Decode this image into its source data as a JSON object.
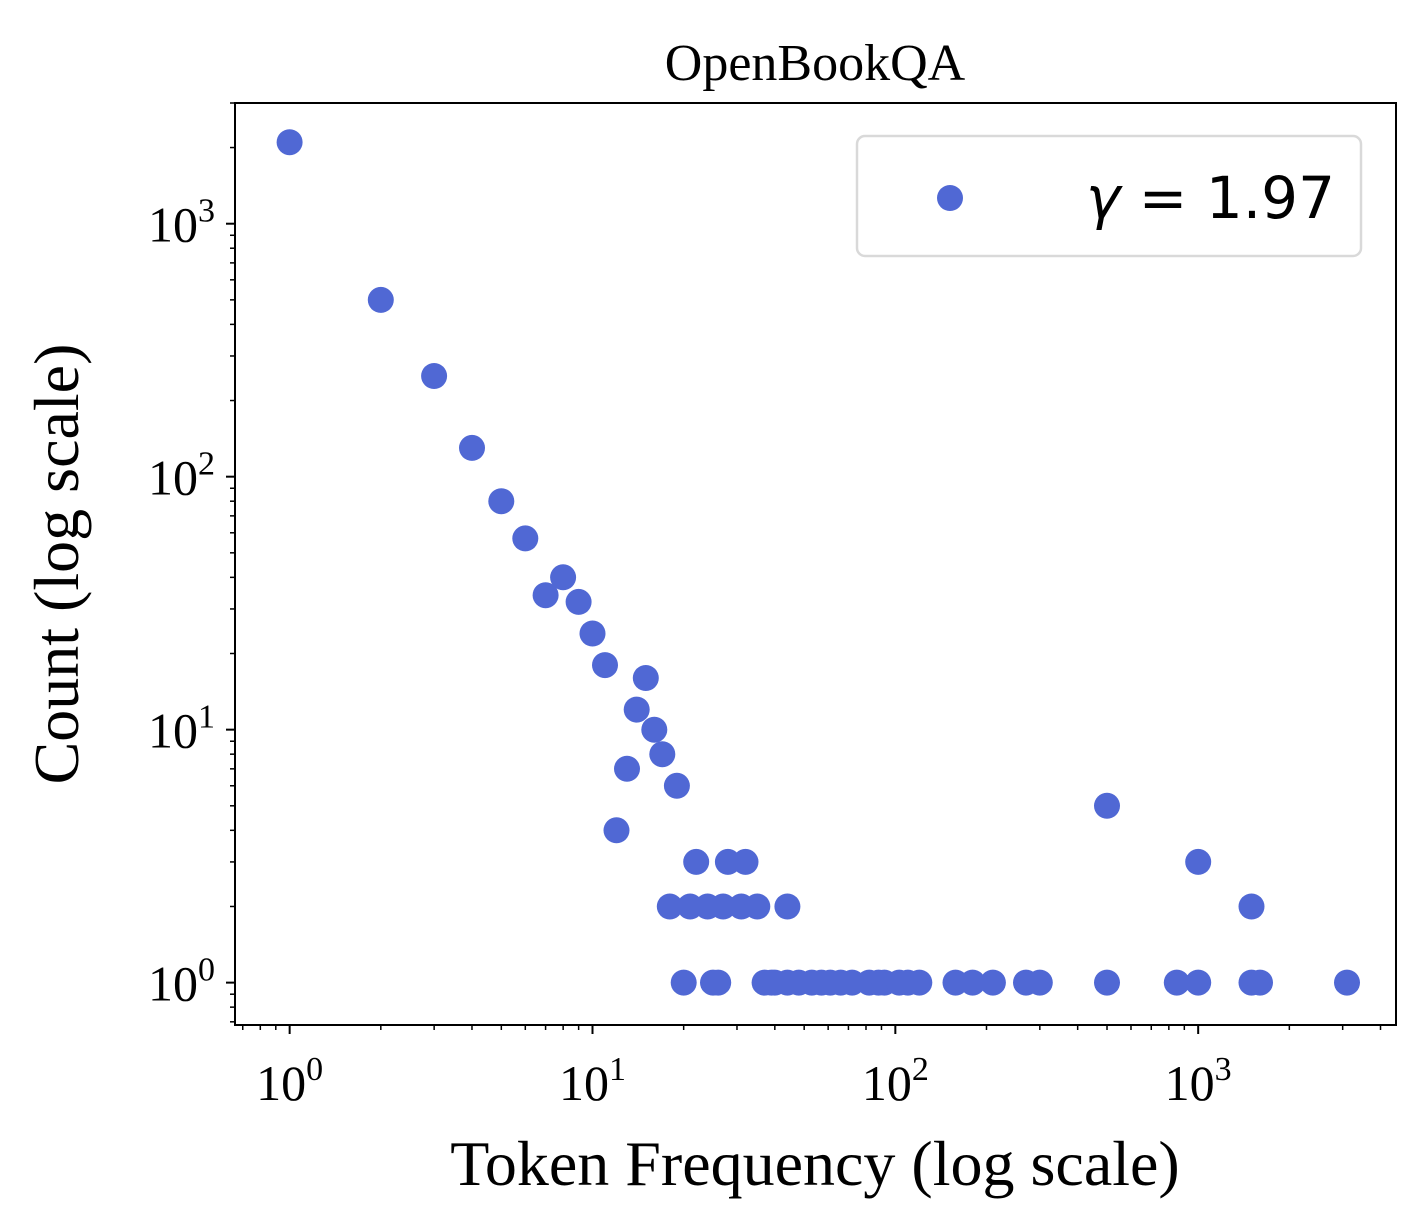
{
  "chart_data": {
    "type": "scatter",
    "title": "OpenBookQA",
    "xlabel": "Token Frequency (log scale)",
    "ylabel": "Count (log scale)",
    "xscale": "log",
    "yscale": "log",
    "xlim": [
      0.66,
      4500
    ],
    "ylim": [
      0.68,
      3000
    ],
    "x_ticks": [
      1,
      10,
      100,
      1000
    ],
    "y_ticks": [
      1,
      10,
      100,
      1000
    ],
    "grid": false,
    "legend": {
      "placement": "top-right",
      "label_prefix": "γ",
      "label_rest": " = 1.97"
    },
    "colors": {
      "marker": "#5068d4",
      "axis": "#000000",
      "legend_border": "#d9d9d9"
    },
    "series": [
      {
        "name": "γ = 1.97",
        "points": [
          [
            1,
            2100
          ],
          [
            2,
            500
          ],
          [
            3,
            250
          ],
          [
            4,
            130
          ],
          [
            5,
            80
          ],
          [
            6,
            57
          ],
          [
            7,
            34
          ],
          [
            8,
            40
          ],
          [
            9,
            32
          ],
          [
            10,
            24
          ],
          [
            11,
            18
          ],
          [
            12,
            4
          ],
          [
            13,
            7
          ],
          [
            14,
            12
          ],
          [
            15,
            16
          ],
          [
            16,
            10
          ],
          [
            17,
            8
          ],
          [
            19,
            6
          ],
          [
            18,
            2
          ],
          [
            20,
            1
          ],
          [
            21,
            2
          ],
          [
            22,
            3
          ],
          [
            24,
            2
          ],
          [
            25,
            1
          ],
          [
            26,
            1
          ],
          [
            27,
            2
          ],
          [
            28,
            3
          ],
          [
            31,
            2
          ],
          [
            32,
            3
          ],
          [
            35,
            2
          ],
          [
            37,
            1
          ],
          [
            39,
            1
          ],
          [
            40,
            1
          ],
          [
            44,
            1
          ],
          [
            44,
            2
          ],
          [
            48,
            1
          ],
          [
            53,
            1
          ],
          [
            57,
            1
          ],
          [
            61,
            1
          ],
          [
            66,
            1
          ],
          [
            72,
            1
          ],
          [
            82,
            1
          ],
          [
            88,
            1
          ],
          [
            92,
            1
          ],
          [
            103,
            1
          ],
          [
            110,
            1
          ],
          [
            120,
            1
          ],
          [
            158,
            1
          ],
          [
            180,
            1
          ],
          [
            210,
            1
          ],
          [
            270,
            1
          ],
          [
            300,
            1
          ],
          [
            500,
            1
          ],
          [
            500,
            5
          ],
          [
            850,
            1
          ],
          [
            1000,
            1
          ],
          [
            1000,
            3
          ],
          [
            1500,
            1
          ],
          [
            1500,
            2
          ],
          [
            1600,
            1
          ],
          [
            3100,
            1
          ]
        ]
      }
    ]
  }
}
